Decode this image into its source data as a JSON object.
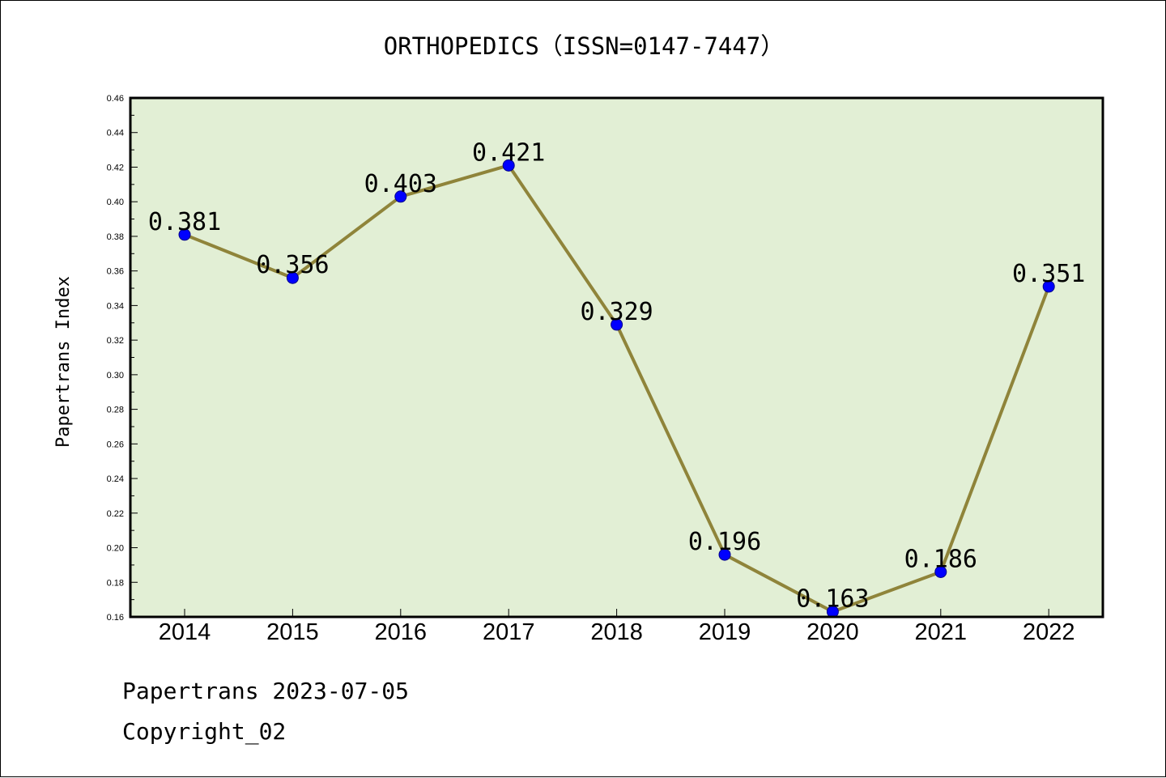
{
  "chart_data": {
    "type": "line",
    "title": "ORTHOPEDICS（ISSN=0147-7447）",
    "ylabel": "Papertrans Index",
    "xlabel": "",
    "categories": [
      "2014",
      "2015",
      "2016",
      "2017",
      "2018",
      "2019",
      "2020",
      "2021",
      "2022"
    ],
    "values": [
      0.381,
      0.356,
      0.403,
      0.421,
      0.329,
      0.196,
      0.163,
      0.186,
      0.351
    ],
    "data_labels": [
      "0.381",
      "0.356",
      "0.403",
      "0.421",
      "0.329",
      "0.196",
      "0.163",
      "0.186",
      "0.351"
    ],
    "ylim": [
      0.16,
      0.46
    ],
    "yticks": [
      "0.16",
      "0.18",
      "0.20",
      "0.22",
      "0.24",
      "0.26",
      "0.28",
      "0.30",
      "0.32",
      "0.34",
      "0.36",
      "0.38",
      "0.40",
      "0.42",
      "0.44",
      "0.46"
    ],
    "grid": false,
    "legend": "none",
    "colors": {
      "plot_background": "#e2efd5",
      "line": "#8f843a",
      "marker": "#0000ff"
    }
  },
  "footer": {
    "source": "Papertrans 2023-07-05",
    "copyright": "Copyright_02"
  }
}
